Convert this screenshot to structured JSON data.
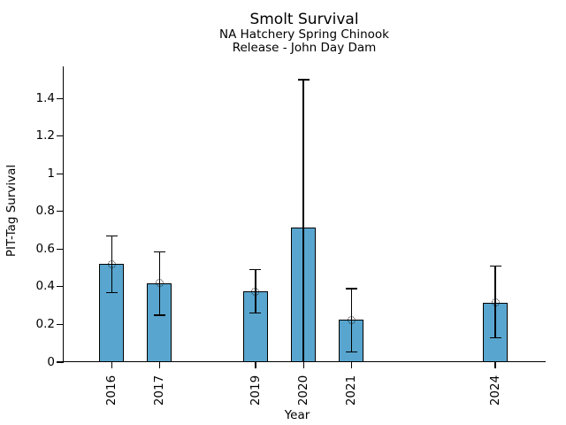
{
  "chart_data": {
    "type": "bar",
    "title": "Smolt Survival",
    "subtitle1": "NA Hatchery Spring Chinook",
    "subtitle2": "Release - John Day Dam",
    "xlabel": "Year",
    "ylabel": "PIT-Tag Survival",
    "categories": [
      "2016",
      "2017",
      "2019",
      "2020",
      "2021",
      "2024"
    ],
    "x_years": [
      2016,
      2017,
      2019,
      2020,
      2021,
      2024
    ],
    "values": [
      0.52,
      0.42,
      0.375,
      0.715,
      0.225,
      0.315
    ],
    "error_low": [
      0.37,
      0.25,
      0.26,
      0.0,
      0.055,
      0.13
    ],
    "error_high": [
      0.67,
      0.585,
      0.49,
      1.5,
      0.39,
      0.51
    ],
    "point_markers": [
      true,
      true,
      true,
      false,
      true,
      true
    ],
    "ytick_values": [
      0,
      0.2,
      0.4,
      0.6,
      0.8,
      1.0,
      1.2,
      1.4
    ],
    "ytick_labels": [
      "0",
      "0.2",
      "0.4",
      "0.6",
      "0.8",
      "1",
      "1.2",
      "1.4"
    ],
    "x_range": [
      2015.0,
      2025.05
    ],
    "ylim": [
      0,
      1.57
    ],
    "grid": false,
    "legend": "none",
    "bar_color": "#58A6CF",
    "bar_edge_color": "#000000",
    "error_color": "#000000",
    "text_color": "#000000"
  }
}
